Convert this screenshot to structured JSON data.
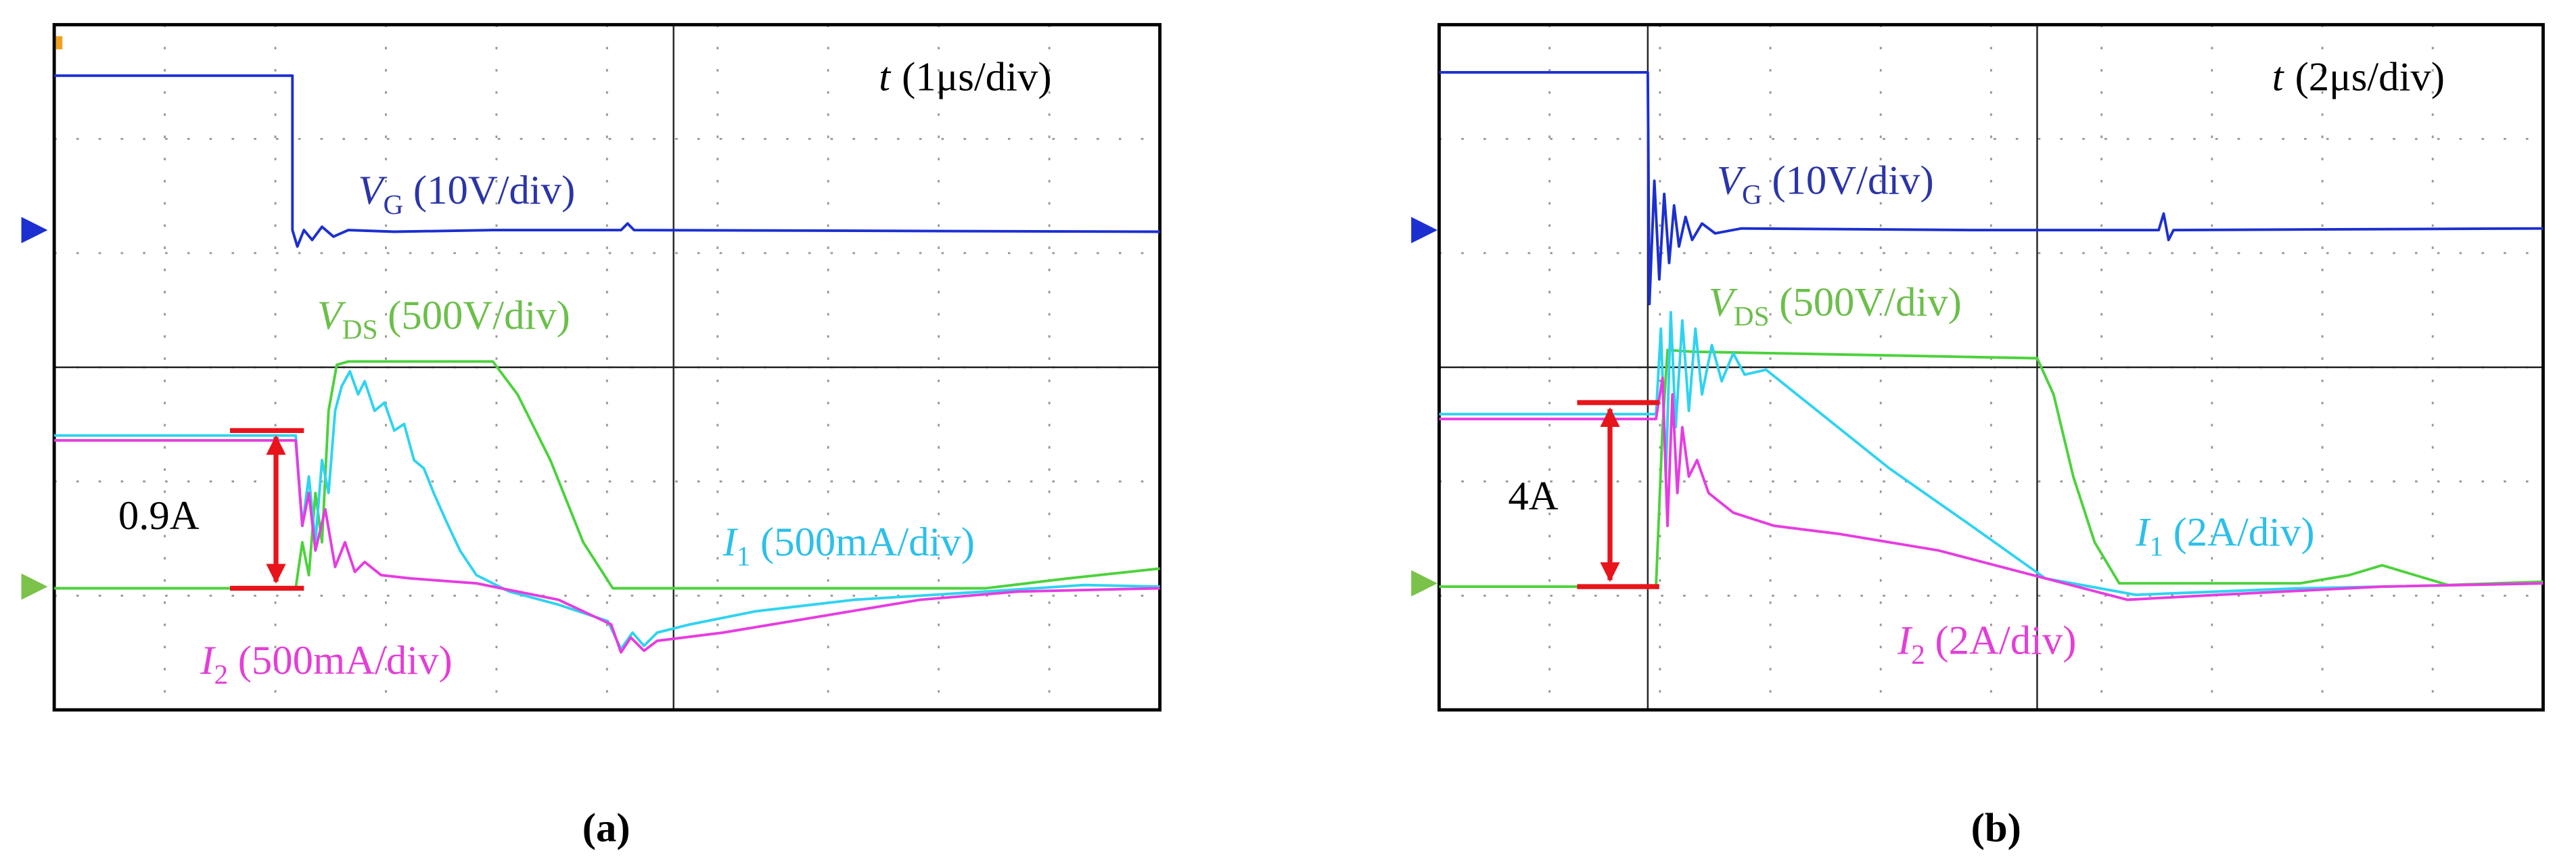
{
  "panels": [
    {
      "time_scale": {
        "symbol": "t",
        "text": "(1μs/div)"
      },
      "labels": [
        {
          "symbol": "V",
          "subscript": "G",
          "text": "(10V/div)"
        },
        {
          "symbol": "V",
          "subscript": "DS",
          "text": "(500V/div)"
        },
        {
          "symbol": "I",
          "subscript": "1",
          "text": "(500mA/div)"
        },
        {
          "symbol": "I",
          "subscript": "2",
          "text": "(500mA/div)"
        }
      ],
      "annotation": "0.9A",
      "caption": "(a)"
    },
    {
      "time_scale": {
        "symbol": "t",
        "text": "(2μs/div)"
      },
      "labels": [
        {
          "symbol": "V",
          "subscript": "G",
          "text": "(10V/div)"
        },
        {
          "symbol": "V",
          "subscript": "DS",
          "text": "(500V/div)"
        },
        {
          "symbol": "I",
          "subscript": "1",
          "text": "(2A/div)"
        },
        {
          "symbol": "I",
          "subscript": "2",
          "text": "(2A/div)"
        }
      ],
      "annotation": "4A",
      "caption": "(b)"
    }
  ]
}
